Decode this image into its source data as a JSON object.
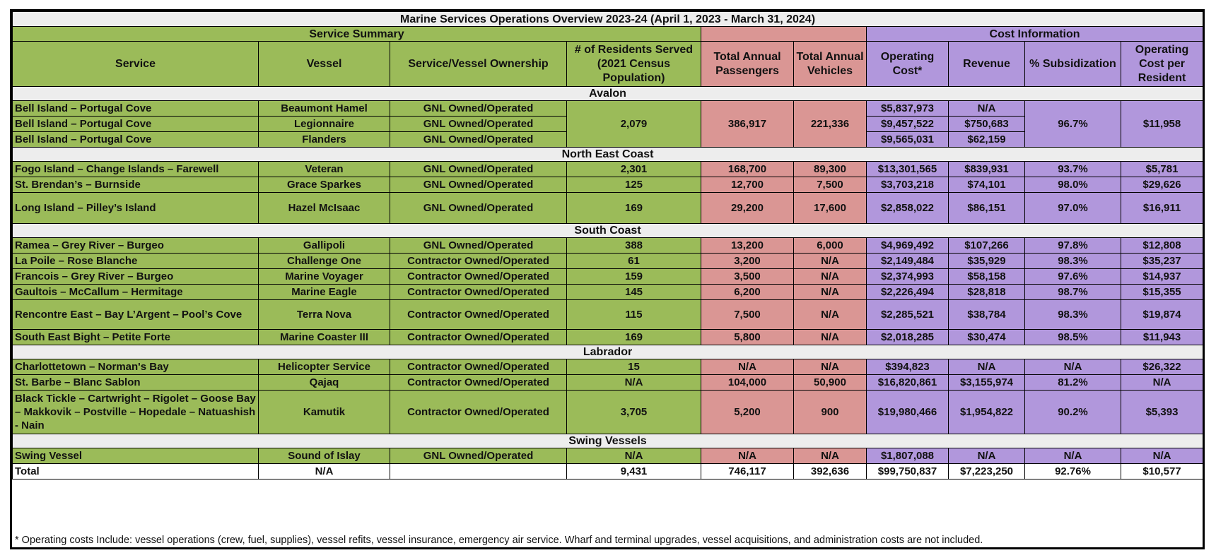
{
  "title": "Marine Services Operations Overview 2023-24 (April 1, 2023 - March 31, 2024)",
  "groups": {
    "service_summary": "Service Summary",
    "cost_information": "Cost Information"
  },
  "columns": [
    "Service",
    "Vessel",
    "Service/Vessel Ownership",
    "# of Residents Served (2021 Census Population)",
    "Total Annual Passengers",
    "Total Annual Vehicles",
    "Operating Cost*",
    "Revenue",
    "% Subsidization",
    "Operating Cost per Resident"
  ],
  "regions": {
    "avalon": "Avalon",
    "north_east_coast": "North East Coast",
    "south_coast": "South Coast",
    "labrador": "Labrador",
    "swing_vessels": "Swing Vessels"
  },
  "avalon": {
    "rows": [
      {
        "service": "Bell Island – Portugal Cove",
        "vessel": "Beaumont Hamel",
        "ownership": "GNL Owned/Operated",
        "cost": "$5,837,973",
        "revenue": "N/A"
      },
      {
        "service": "Bell Island – Portugal Cove",
        "vessel": "Legionnaire",
        "ownership": "GNL Owned/Operated",
        "cost": "$9,457,522",
        "revenue": "$750,683"
      },
      {
        "service": "Bell Island – Portugal Cove",
        "vessel": "Flanders",
        "ownership": "GNL Owned/Operated",
        "cost": "$9,565,031",
        "revenue": "$62,159"
      }
    ],
    "residents": "2,079",
    "passengers": "386,917",
    "vehicles": "221,336",
    "subsidization": "96.7%",
    "per_resident": "$11,958"
  },
  "north_east_coast": [
    {
      "service": "Fogo Island – Change Islands – Farewell",
      "vessel": "Veteran",
      "ownership": "GNL Owned/Operated",
      "residents": "2,301",
      "passengers": "168,700",
      "vehicles": "89,300",
      "cost": "$13,301,565",
      "revenue": "$839,931",
      "subsidization": "93.7%",
      "per_resident": "$5,781"
    },
    {
      "service": "St. Brendan’s – Burnside",
      "vessel": "Grace Sparkes",
      "ownership": "GNL Owned/Operated",
      "residents": "125",
      "passengers": "12,700",
      "vehicles": "7,500",
      "cost": "$3,703,218",
      "revenue": "$74,101",
      "subsidization": "98.0%",
      "per_resident": "$29,626"
    },
    {
      "service": "Long Island – Pilley’s Island",
      "vessel": "Hazel McIsaac",
      "ownership": "GNL Owned/Operated",
      "residents": "169",
      "passengers": "29,200",
      "vehicles": "17,600",
      "cost": "$2,858,022",
      "revenue": "$86,151",
      "subsidization": "97.0%",
      "per_resident": "$16,911"
    }
  ],
  "south_coast": [
    {
      "service": "Ramea – Grey River – Burgeo",
      "vessel": "Gallipoli",
      "ownership": "GNL Owned/Operated",
      "residents": "388",
      "passengers": "13,200",
      "vehicles": "6,000",
      "cost": "$4,969,492",
      "revenue": "$107,266",
      "subsidization": "97.8%",
      "per_resident": "$12,808"
    },
    {
      "service": "La Poile – Rose Blanche",
      "vessel": "Challenge One",
      "ownership": "Contractor Owned/Operated",
      "residents": "61",
      "passengers": "3,200",
      "vehicles": "N/A",
      "cost": "$2,149,484",
      "revenue": "$35,929",
      "subsidization": "98.3%",
      "per_resident": "$35,237"
    },
    {
      "service": "Francois – Grey River – Burgeo",
      "vessel": "Marine Voyager",
      "ownership": "Contractor Owned/Operated",
      "residents": "159",
      "passengers": "3,500",
      "vehicles": "N/A",
      "cost": "$2,374,993",
      "revenue": "$58,158",
      "subsidization": "97.6%",
      "per_resident": "$14,937"
    },
    {
      "service": "Gaultois – McCallum – Hermitage",
      "vessel": "Marine Eagle",
      "ownership": "Contractor Owned/Operated",
      "residents": "145",
      "passengers": "6,200",
      "vehicles": "N/A",
      "cost": "$2,226,494",
      "revenue": "$28,818",
      "subsidization": "98.7%",
      "per_resident": "$15,355"
    },
    {
      "service": "Rencontre East – Bay L’Argent – Pool’s Cove",
      "vessel": "Terra Nova",
      "ownership": "Contractor Owned/Operated",
      "residents": "115",
      "passengers": "7,500",
      "vehicles": "N/A",
      "cost": "$2,285,521",
      "revenue": "$38,784",
      "subsidization": "98.3%",
      "per_resident": "$19,874"
    },
    {
      "service": "South East Bight – Petite Forte",
      "vessel": "Marine Coaster III",
      "ownership": "Contractor Owned/Operated",
      "residents": "169",
      "passengers": "5,800",
      "vehicles": "N/A",
      "cost": "$2,018,285",
      "revenue": "$30,474",
      "subsidization": "98.5%",
      "per_resident": "$11,943"
    }
  ],
  "labrador": [
    {
      "service": "Charlottetown – Norman's Bay",
      "vessel": "Helicopter Service",
      "ownership": "Contractor Owned/Operated",
      "residents": "15",
      "passengers": "N/A",
      "vehicles": "N/A",
      "cost": "$394,823",
      "revenue": "N/A",
      "subsidization": "N/A",
      "per_resident": "$26,322"
    },
    {
      "service": "St. Barbe – Blanc Sablon",
      "vessel": "Qajaq",
      "ownership": "Contractor Owned/Operated",
      "residents": "N/A",
      "passengers": "104,000",
      "vehicles": "50,900",
      "cost": "$16,820,861",
      "revenue": "$3,155,974",
      "subsidization": "81.2%",
      "per_resident": "N/A"
    },
    {
      "service": "Black Tickle – Cartwright – Rigolet – Goose Bay – Makkovik – Postville – Hopedale – Natuashish - Nain",
      "vessel": "Kamutik",
      "ownership": "Contractor Owned/Operated",
      "residents": "3,705",
      "passengers": "5,200",
      "vehicles": "900",
      "cost": "$19,980,466",
      "revenue": "$1,954,822",
      "subsidization": "90.2%",
      "per_resident": "$5,393"
    }
  ],
  "swing_vessels": [
    {
      "service": "Swing Vessel",
      "vessel": "Sound of Islay",
      "ownership": "GNL Owned/Operated",
      "residents": "N/A",
      "passengers": "N/A",
      "vehicles": "N/A",
      "cost": "$1,807,088",
      "revenue": "N/A",
      "subsidization": "N/A",
      "per_resident": "N/A"
    }
  ],
  "total": {
    "service": "Total",
    "vessel": "N/A",
    "ownership": "",
    "residents": "9,431",
    "passengers": "746,117",
    "vehicles": "392,636",
    "cost": "$99,750,837",
    "revenue": "$7,223,250",
    "subsidization": "92.76%",
    "per_resident": "$10,577"
  },
  "footnote": "* Operating costs Include: vessel operations (crew, fuel, supplies), vessel refits, vessel insurance, emergency air service. Wharf and terminal upgrades, vessel acquisitions, and administration costs are not included.",
  "colors": {
    "green": "#9bbb59",
    "red": "#da9694",
    "purple": "#b197dc",
    "gray": "#ededed"
  }
}
